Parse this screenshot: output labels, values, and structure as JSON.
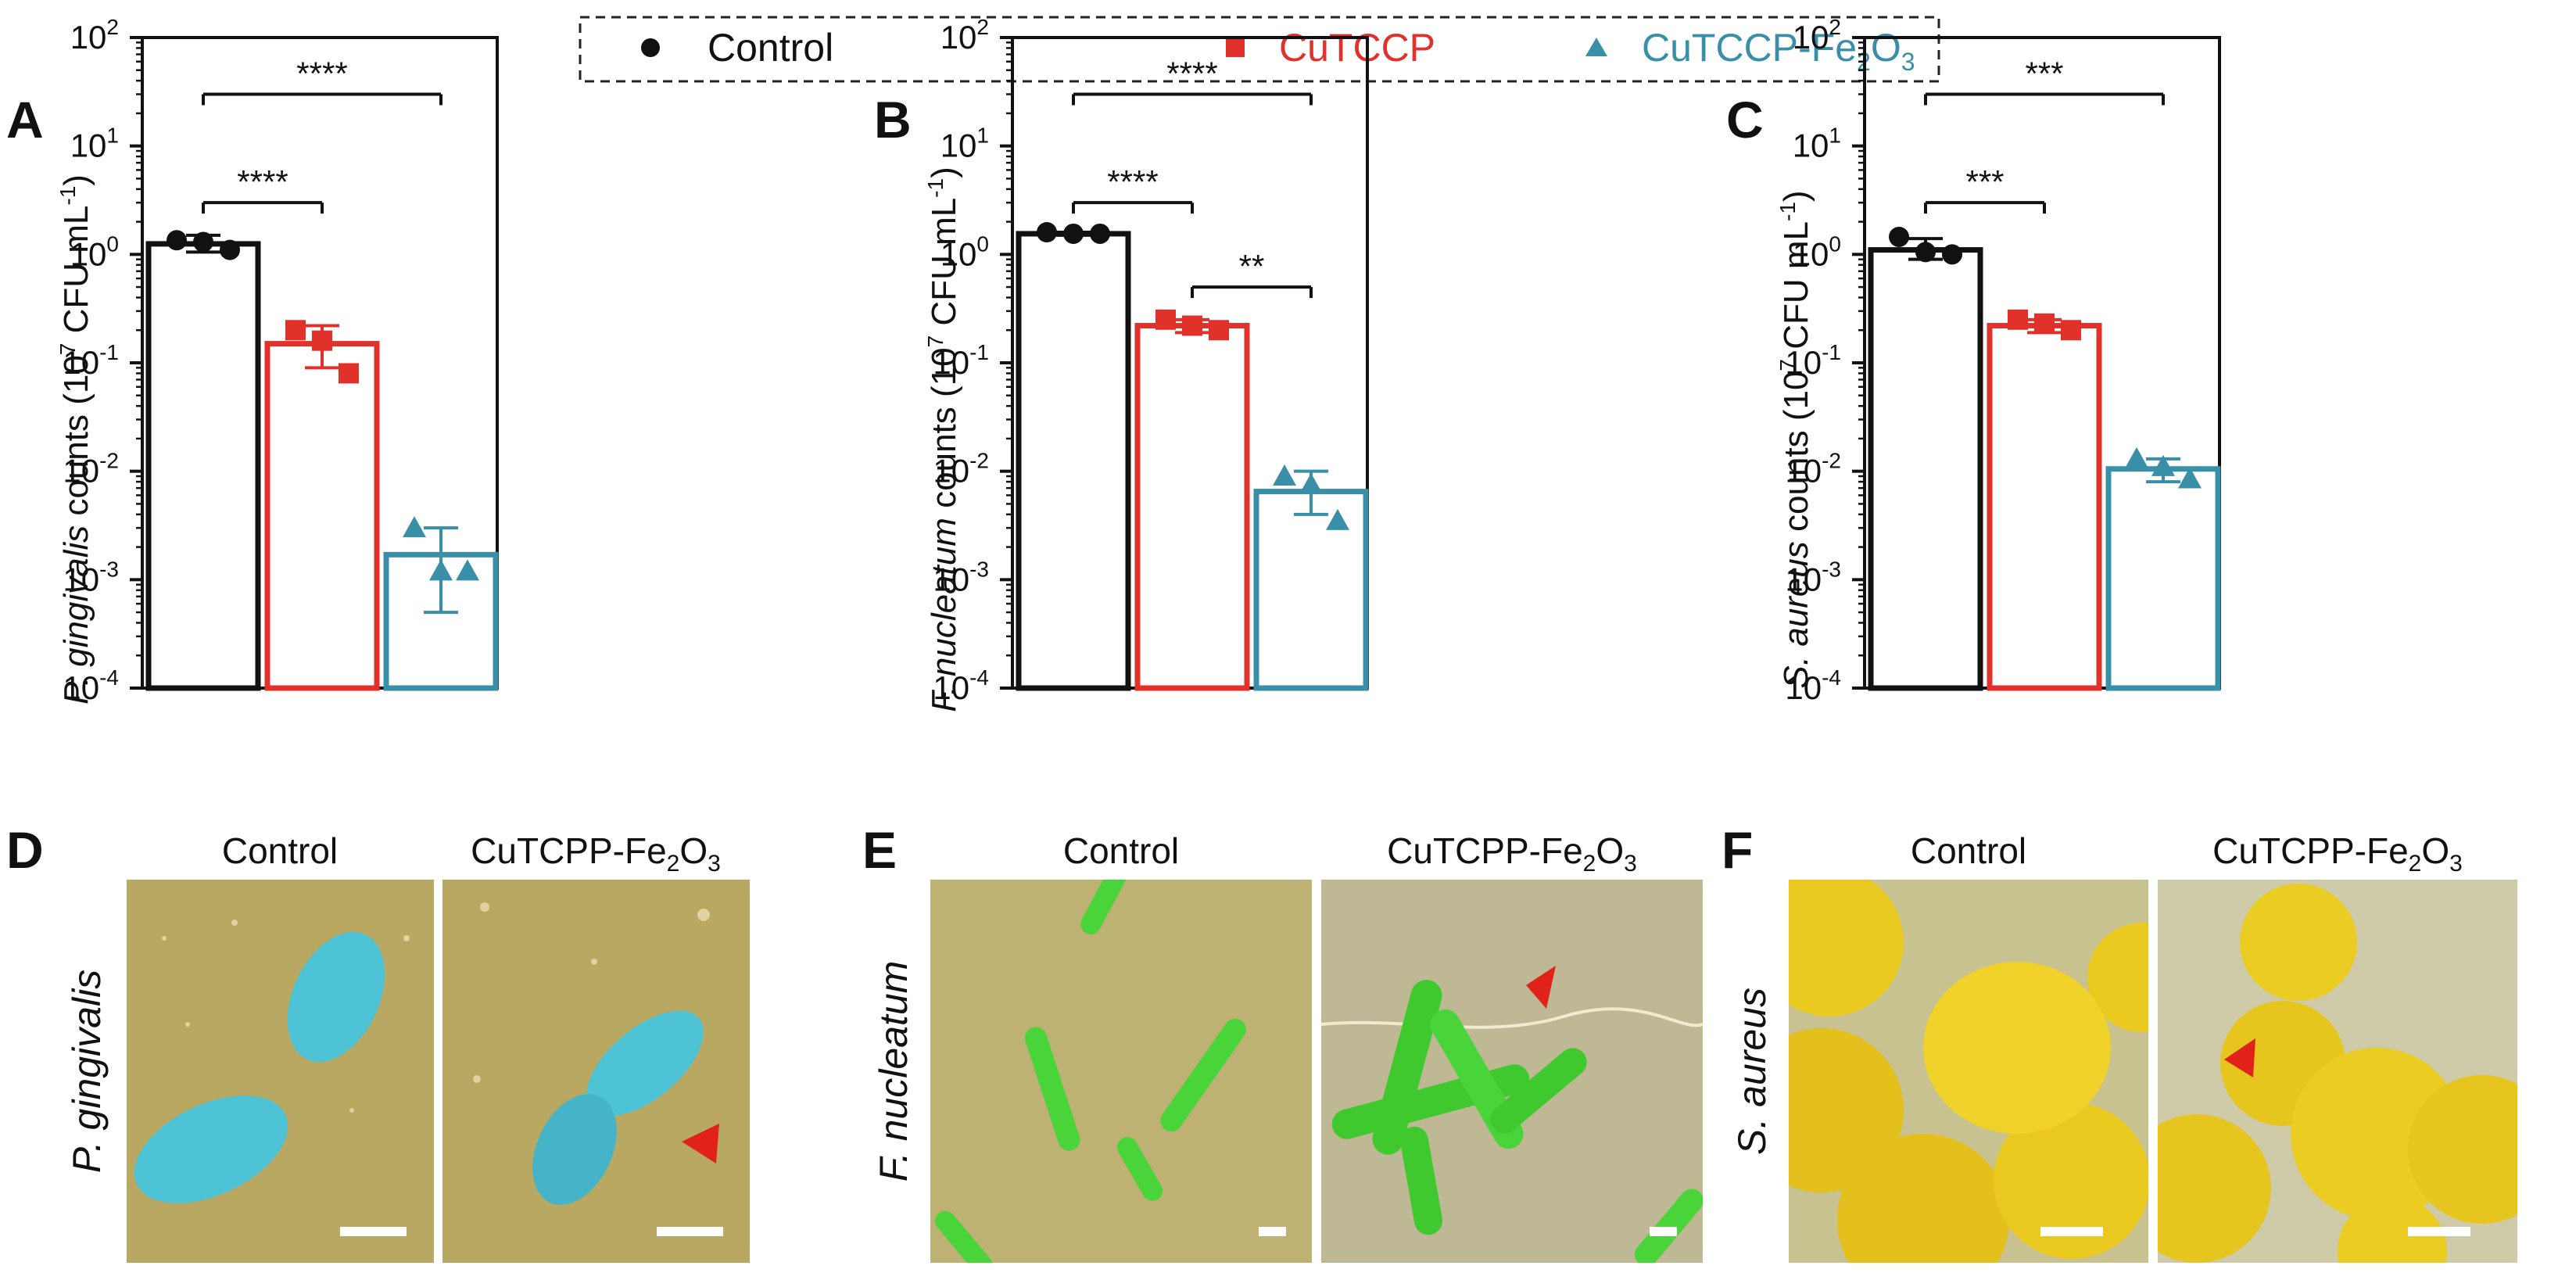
{
  "legend": {
    "items": [
      {
        "label": "Control",
        "color": "#111111",
        "marker": "circle"
      },
      {
        "label": "CuTCCP",
        "color": "#e0322a",
        "marker": "square"
      },
      {
        "label": "CuTCCP-Fe",
        "sub": "2",
        "label_b": "O",
        "sub_b": "3",
        "color": "#3a8fa8",
        "marker": "triangle"
      }
    ]
  },
  "chart_data": [
    {
      "panel": "A",
      "type": "bar",
      "yscale": "log",
      "ylim": [
        0.0001,
        100
      ],
      "yticks": [
        "10",
        "10",
        "10",
        "10",
        "10",
        "10",
        "10"
      ],
      "ytick_exponents": [
        "2",
        "1",
        "0",
        "-1",
        "-2",
        "-3",
        "-4"
      ],
      "ylabel": {
        "species": "P. gingivalis",
        "rest": " counts (10",
        "exp1": "7",
        "mid": " CFU mL",
        "exp2": "-1",
        "end": ")"
      },
      "categories": [
        "Control",
        "CuTCCP",
        "CuTCCP-Fe2O3"
      ],
      "values": [
        1.25,
        0.15,
        0.0017
      ],
      "error_low": [
        1.05,
        0.09,
        0.0005
      ],
      "error_high": [
        1.5,
        0.22,
        0.003
      ],
      "points": [
        [
          1.35,
          1.3,
          1.1
        ],
        [
          0.2,
          0.16,
          0.08
        ],
        [
          0.003,
          0.0012,
          0.0012
        ]
      ],
      "significance": [
        {
          "from": 0,
          "to": 1,
          "label": "****",
          "y": 3
        },
        {
          "from": 0,
          "to": 2,
          "label": "****",
          "y": 30
        }
      ]
    },
    {
      "panel": "B",
      "type": "bar",
      "yscale": "log",
      "ylim": [
        0.0001,
        100
      ],
      "yticks": [
        "10",
        "10",
        "10",
        "10",
        "10",
        "10",
        "10"
      ],
      "ytick_exponents": [
        "2",
        "1",
        "0",
        "-1",
        "-2",
        "-3",
        "-4"
      ],
      "ylabel": {
        "species": "F. nucleatum",
        "rest": " counts (10",
        "exp1": "7",
        "mid": " CFU mL",
        "exp2": "-1",
        "end": ")"
      },
      "categories": [
        "Control",
        "CuTCCP",
        "CuTCCP-Fe2O3"
      ],
      "values": [
        1.55,
        0.22,
        0.0065
      ],
      "error_low": [
        1.5,
        0.19,
        0.004
      ],
      "error_high": [
        1.6,
        0.25,
        0.01
      ],
      "points": [
        [
          1.6,
          1.55,
          1.55
        ],
        [
          0.25,
          0.22,
          0.2
        ],
        [
          0.009,
          0.0075,
          0.0035
        ]
      ],
      "significance": [
        {
          "from": 0,
          "to": 1,
          "label": "****",
          "y": 3
        },
        {
          "from": 0,
          "to": 2,
          "label": "****",
          "y": 30
        },
        {
          "from": 1,
          "to": 2,
          "label": "**",
          "y": 0.5
        }
      ]
    },
    {
      "panel": "C",
      "type": "bar",
      "yscale": "log",
      "ylim": [
        0.0001,
        100
      ],
      "yticks": [
        "10",
        "10",
        "10",
        "10",
        "10",
        "10",
        "10"
      ],
      "ytick_exponents": [
        "2",
        "1",
        "0",
        "-1",
        "-2",
        "-3",
        "-4"
      ],
      "ylabel": {
        "species": "S. aureus",
        "rest": " counts (10",
        "exp1": "7",
        "mid": " CFU mL",
        "exp2": "-1",
        "end": ")"
      },
      "categories": [
        "Control",
        "CuTCCP",
        "CuTCCP-Fe2O3"
      ],
      "values": [
        1.1,
        0.22,
        0.0105
      ],
      "error_low": [
        0.9,
        0.19,
        0.008
      ],
      "error_high": [
        1.4,
        0.25,
        0.013
      ],
      "points": [
        [
          1.45,
          1.05,
          1.0
        ],
        [
          0.25,
          0.23,
          0.2
        ],
        [
          0.013,
          0.011,
          0.0085
        ]
      ],
      "significance": [
        {
          "from": 0,
          "to": 1,
          "label": "***",
          "y": 3
        },
        {
          "from": 0,
          "to": 2,
          "label": "***",
          "y": 30
        }
      ]
    }
  ],
  "sem_panels": [
    {
      "letter": "D",
      "species": "P. gingivalis",
      "left_title": "Control",
      "right_title_a": "CuTCPP-Fe",
      "right_sub_a": "2",
      "right_title_b": "O",
      "right_sub_b": "3",
      "cell_color": "#4fc3d6",
      "bg_color": "#b8a862",
      "shape": "oval"
    },
    {
      "letter": "E",
      "species": "F. nucleatum",
      "left_title": "Control",
      "right_title_a": "CuTCPP-Fe",
      "right_sub_a": "2",
      "right_title_b": "O",
      "right_sub_b": "3",
      "cell_color": "#49d43a",
      "bg_color": "#bdb174",
      "shape": "rod"
    },
    {
      "letter": "F",
      "species": "S. aureus",
      "left_title": "Control",
      "right_title_a": "CuTCPP-Fe",
      "right_sub_a": "2",
      "right_title_b": "O",
      "right_sub_b": "3",
      "cell_color": "#f0d22a",
      "bg_color": "#c8c290",
      "shape": "coccus"
    }
  ],
  "colors": {
    "control": "#111111",
    "cutccp": "#e0322a",
    "fe2o3": "#3a8fa8",
    "arrow": "#e0221a",
    "scale_bar": "#ffffff"
  }
}
